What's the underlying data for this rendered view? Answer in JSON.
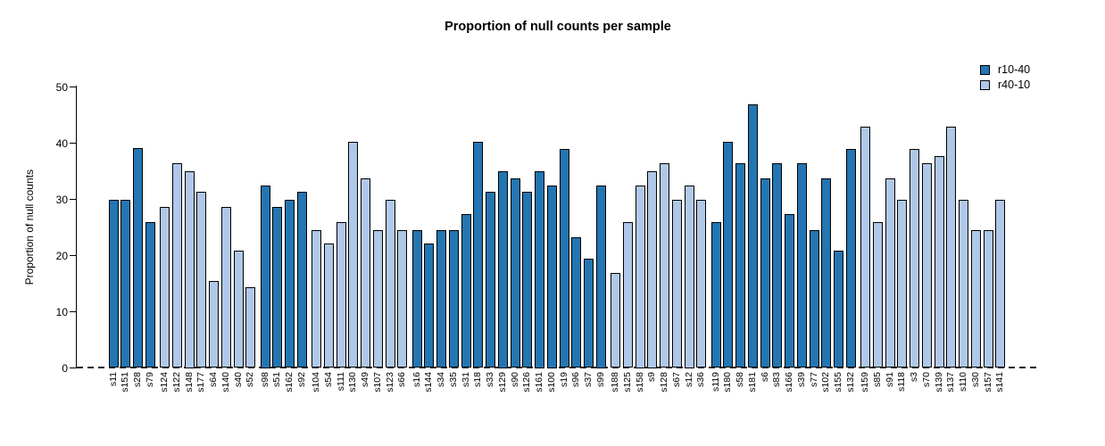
{
  "chart_data": {
    "type": "bar",
    "title": "Proportion of null counts per sample",
    "xlabel": "",
    "ylabel": "Proportion of null counts",
    "ylim": [
      0,
      50
    ],
    "yticks": [
      0,
      10,
      20,
      30,
      40,
      50
    ],
    "grid": false,
    "legend_position": "top-right",
    "zero_line_style": "dashed",
    "bar_border_color": "#000000",
    "legend": [
      {
        "label": "r10-40",
        "color": "#2376B2"
      },
      {
        "label": "r40-10",
        "color": "#B0C8E8"
      }
    ],
    "groups": [
      {
        "series": "r10-40",
        "bars": [
          {
            "label": "s11",
            "value": 29.9
          },
          {
            "label": "s151",
            "value": 29.9
          },
          {
            "label": "s28",
            "value": 39.1
          },
          {
            "label": "s79",
            "value": 25.9
          }
        ]
      },
      {
        "series": "r40-10",
        "bars": [
          {
            "label": "s124",
            "value": 28.6
          },
          {
            "label": "s122",
            "value": 36.4
          },
          {
            "label": "s148",
            "value": 35.0
          },
          {
            "label": "s177",
            "value": 31.3
          },
          {
            "label": "s64",
            "value": 15.5
          },
          {
            "label": "s140",
            "value": 28.6
          },
          {
            "label": "s40",
            "value": 20.8
          },
          {
            "label": "s52",
            "value": 14.3
          }
        ]
      },
      {
        "series": "r10-40",
        "bars": [
          {
            "label": "s98",
            "value": 32.5
          },
          {
            "label": "s51",
            "value": 28.6
          },
          {
            "label": "s162",
            "value": 29.9
          },
          {
            "label": "s92",
            "value": 31.3
          }
        ]
      },
      {
        "series": "r40-10",
        "bars": [
          {
            "label": "s104",
            "value": 24.6
          },
          {
            "label": "s54",
            "value": 22.2
          },
          {
            "label": "s111",
            "value": 26.0
          },
          {
            "label": "s130",
            "value": 40.2
          },
          {
            "label": "s49",
            "value": 33.8
          },
          {
            "label": "s107",
            "value": 24.6
          },
          {
            "label": "s123",
            "value": 29.9
          },
          {
            "label": "s66",
            "value": 24.6
          }
        ]
      },
      {
        "series": "r10-40",
        "bars": [
          {
            "label": "s16",
            "value": 24.6
          },
          {
            "label": "s144",
            "value": 22.2
          },
          {
            "label": "s34",
            "value": 24.6
          },
          {
            "label": "s35",
            "value": 24.6
          },
          {
            "label": "s31",
            "value": 27.4
          },
          {
            "label": "s18",
            "value": 40.2
          },
          {
            "label": "s33",
            "value": 31.3
          },
          {
            "label": "s129",
            "value": 35.0
          },
          {
            "label": "s90",
            "value": 33.8
          },
          {
            "label": "s126",
            "value": 31.3
          },
          {
            "label": "s161",
            "value": 35.0
          },
          {
            "label": "s100",
            "value": 32.5
          },
          {
            "label": "s19",
            "value": 39.0
          },
          {
            "label": "s96",
            "value": 23.3
          },
          {
            "label": "s37",
            "value": 19.5
          },
          {
            "label": "s99",
            "value": 32.5
          }
        ]
      },
      {
        "series": "r40-10",
        "bars": [
          {
            "label": "s188",
            "value": 16.9
          },
          {
            "label": "s125",
            "value": 26.0
          },
          {
            "label": "s158",
            "value": 32.5
          },
          {
            "label": "s9",
            "value": 35.0
          },
          {
            "label": "s128",
            "value": 36.4
          },
          {
            "label": "s67",
            "value": 29.9
          },
          {
            "label": "s12",
            "value": 32.5
          },
          {
            "label": "s36",
            "value": 29.9
          }
        ]
      },
      {
        "series": "r10-40",
        "bars": [
          {
            "label": "s119",
            "value": 26.0
          },
          {
            "label": "s180",
            "value": 40.2
          },
          {
            "label": "s58",
            "value": 36.4
          },
          {
            "label": "s181",
            "value": 46.9
          },
          {
            "label": "s6",
            "value": 33.8
          },
          {
            "label": "s83",
            "value": 36.4
          },
          {
            "label": "s166",
            "value": 27.4
          },
          {
            "label": "s39",
            "value": 36.4
          },
          {
            "label": "s77",
            "value": 24.6
          },
          {
            "label": "s102",
            "value": 33.8
          },
          {
            "label": "s155",
            "value": 20.8
          },
          {
            "label": "s132",
            "value": 39.0
          }
        ]
      },
      {
        "series": "r40-10",
        "bars": [
          {
            "label": "s159",
            "value": 43.0
          },
          {
            "label": "s85",
            "value": 26.0
          },
          {
            "label": "s91",
            "value": 33.8
          },
          {
            "label": "s118",
            "value": 29.9
          },
          {
            "label": "s3",
            "value": 39.0
          },
          {
            "label": "s70",
            "value": 36.4
          },
          {
            "label": "s139",
            "value": 37.7
          },
          {
            "label": "s137",
            "value": 43.0
          },
          {
            "label": "s110",
            "value": 29.9
          },
          {
            "label": "s30",
            "value": 24.6
          },
          {
            "label": "s157",
            "value": 24.6
          },
          {
            "label": "s141",
            "value": 29.9
          }
        ]
      }
    ]
  }
}
